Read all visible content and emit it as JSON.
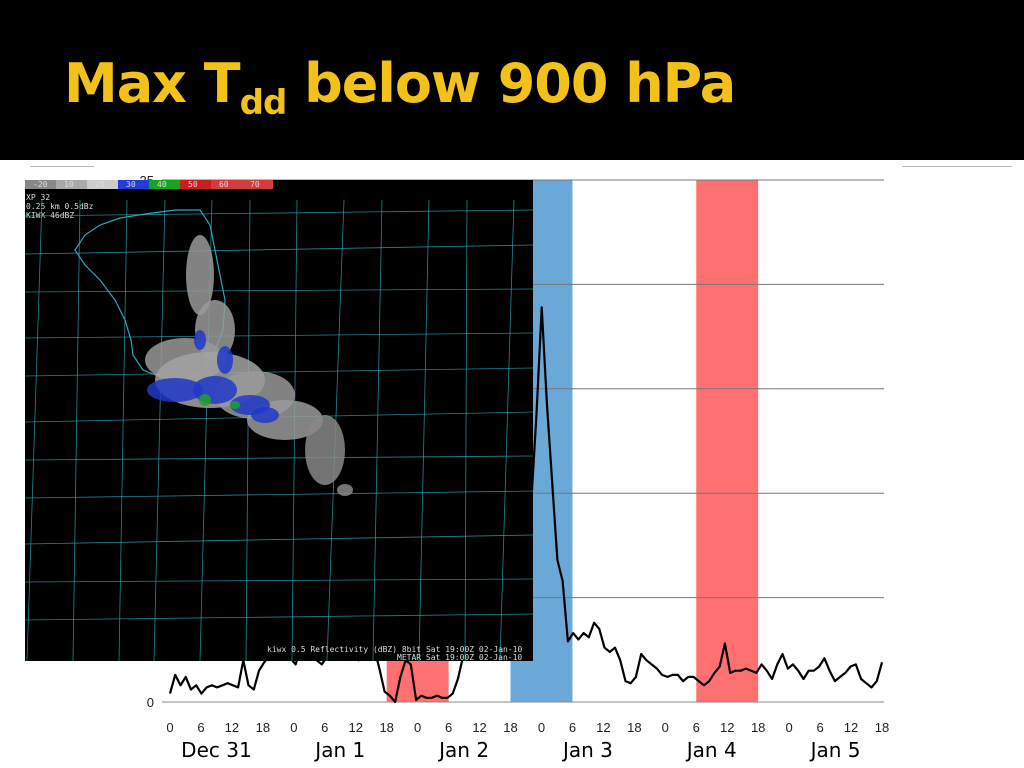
{
  "title": {
    "main": "Max T",
    "subscript": "dd",
    "rest": " below 900 hPa"
  },
  "colors": {
    "title": "#f2c21a",
    "cold_band": "#6aa8d8",
    "warm_band": "#ff7070",
    "line": "#000000"
  },
  "chart_data": {
    "type": "line",
    "ylim": [
      0,
      25
    ],
    "y_ticks": [
      "0",
      "25"
    ],
    "hour_ticks": [
      "0",
      "6",
      "12",
      "18",
      "0",
      "6",
      "12",
      "18",
      "0",
      "6",
      "12",
      "18",
      "0",
      "6",
      "12",
      "18",
      "0",
      "6",
      "12",
      "18",
      "0",
      "6",
      "12",
      "18"
    ],
    "day_labels": [
      "Dec 31",
      "Jan 1",
      "Jan 2",
      "Jan 3",
      "Jan 4",
      "Jan 5"
    ],
    "bands": [
      {
        "color": "warm",
        "start": "Jan 1 18Z",
        "end": "Jan 2 06Z"
      },
      {
        "color": "cold",
        "start": "Jan 2 18Z",
        "end": "Jan 3 06Z"
      },
      {
        "color": "warm",
        "start": "Jan 4 06Z",
        "end": "Jan 4 18Z"
      }
    ],
    "series": [
      {
        "values": [
          0.4,
          1.3,
          0.8,
          1.2,
          0.6,
          0.8,
          0.4,
          0.7,
          0.8,
          0.7,
          0.8,
          0.9,
          0.8,
          0.7,
          2.0,
          0.8,
          0.6,
          1.5,
          1.9,
          2.2,
          2.2,
          2.5,
          2.1,
          2.1,
          1.8,
          2.6,
          2.5,
          2.7,
          2.0,
          1.8,
          2.2,
          2.5,
          2.8,
          2.5,
          2.6,
          2.2,
          2.0,
          2.5,
          2.9,
          2.6,
          1.6,
          0.5,
          0.3,
          0.0,
          1.2,
          2.0,
          1.8,
          0.1,
          0.3,
          0.2,
          0.2,
          0.3,
          0.2,
          0.2,
          0.4,
          1.1,
          2.2,
          3.0,
          4.1,
          3.5,
          2.6,
          3.5,
          3.0,
          2.8,
          3.0,
          4.8,
          3.8,
          3.0,
          5.0,
          9.5,
          13.8,
          18.9,
          14.3,
          10.5,
          6.8,
          5.8,
          2.9,
          3.3,
          3.0,
          3.3,
          3.1,
          3.8,
          3.5,
          2.6,
          2.4,
          2.6,
          2.0,
          1.0,
          0.9,
          1.2,
          2.3,
          2.0,
          1.8,
          1.6,
          1.3,
          1.2,
          1.3,
          1.3,
          1.0,
          1.2,
          1.2,
          1.0,
          0.8,
          1.0,
          1.4,
          1.7,
          2.8,
          1.4,
          1.5,
          1.5,
          1.6,
          1.5,
          1.4,
          1.8,
          1.5,
          1.1,
          1.8,
          2.3,
          1.6,
          1.8,
          1.5,
          1.1,
          1.5,
          1.5,
          1.7,
          2.1,
          1.5,
          1.0,
          1.2,
          1.4,
          1.7,
          1.8,
          1.1,
          0.9,
          0.7,
          1.0,
          1.9
        ]
      }
    ]
  },
  "radar": {
    "caption_line1": "kiwx 0.5 Reflectivity (dBZ)  8bit Sat 19:00Z 02-Jan-10",
    "caption_line2": "METAR  Sat 19:00Z 02-Jan-10",
    "info_line1": "XP 32",
    "info_line2": "0.25 km  0.5dBz",
    "info_line3": "KIWX 46dBZ",
    "colorbar_labels": [
      "-20",
      "10",
      "20",
      "30",
      "40",
      "50",
      "60",
      "70"
    ]
  }
}
